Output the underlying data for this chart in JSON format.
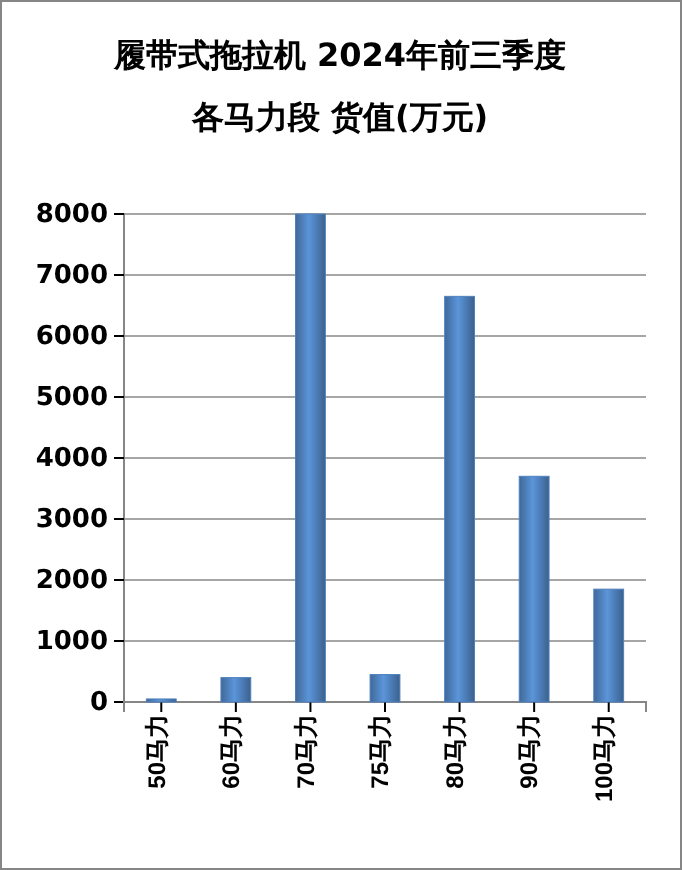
{
  "chart_data": {
    "type": "bar",
    "title": "履带式拖拉机  2024年前三季度",
    "subtitle": "各马力段  货值(万元)",
    "categories": [
      "50马力",
      "60马力",
      "70马力",
      "75马力",
      "80马力",
      "90马力",
      "100马力"
    ],
    "values": [
      50,
      400,
      8000,
      450,
      6650,
      3700,
      1850
    ],
    "color": "#4f81bd",
    "ylim": [
      0,
      8000
    ],
    "yticks": [
      0,
      1000,
      2000,
      3000,
      4000,
      5000,
      6000,
      7000,
      8000
    ],
    "grid": "y"
  }
}
